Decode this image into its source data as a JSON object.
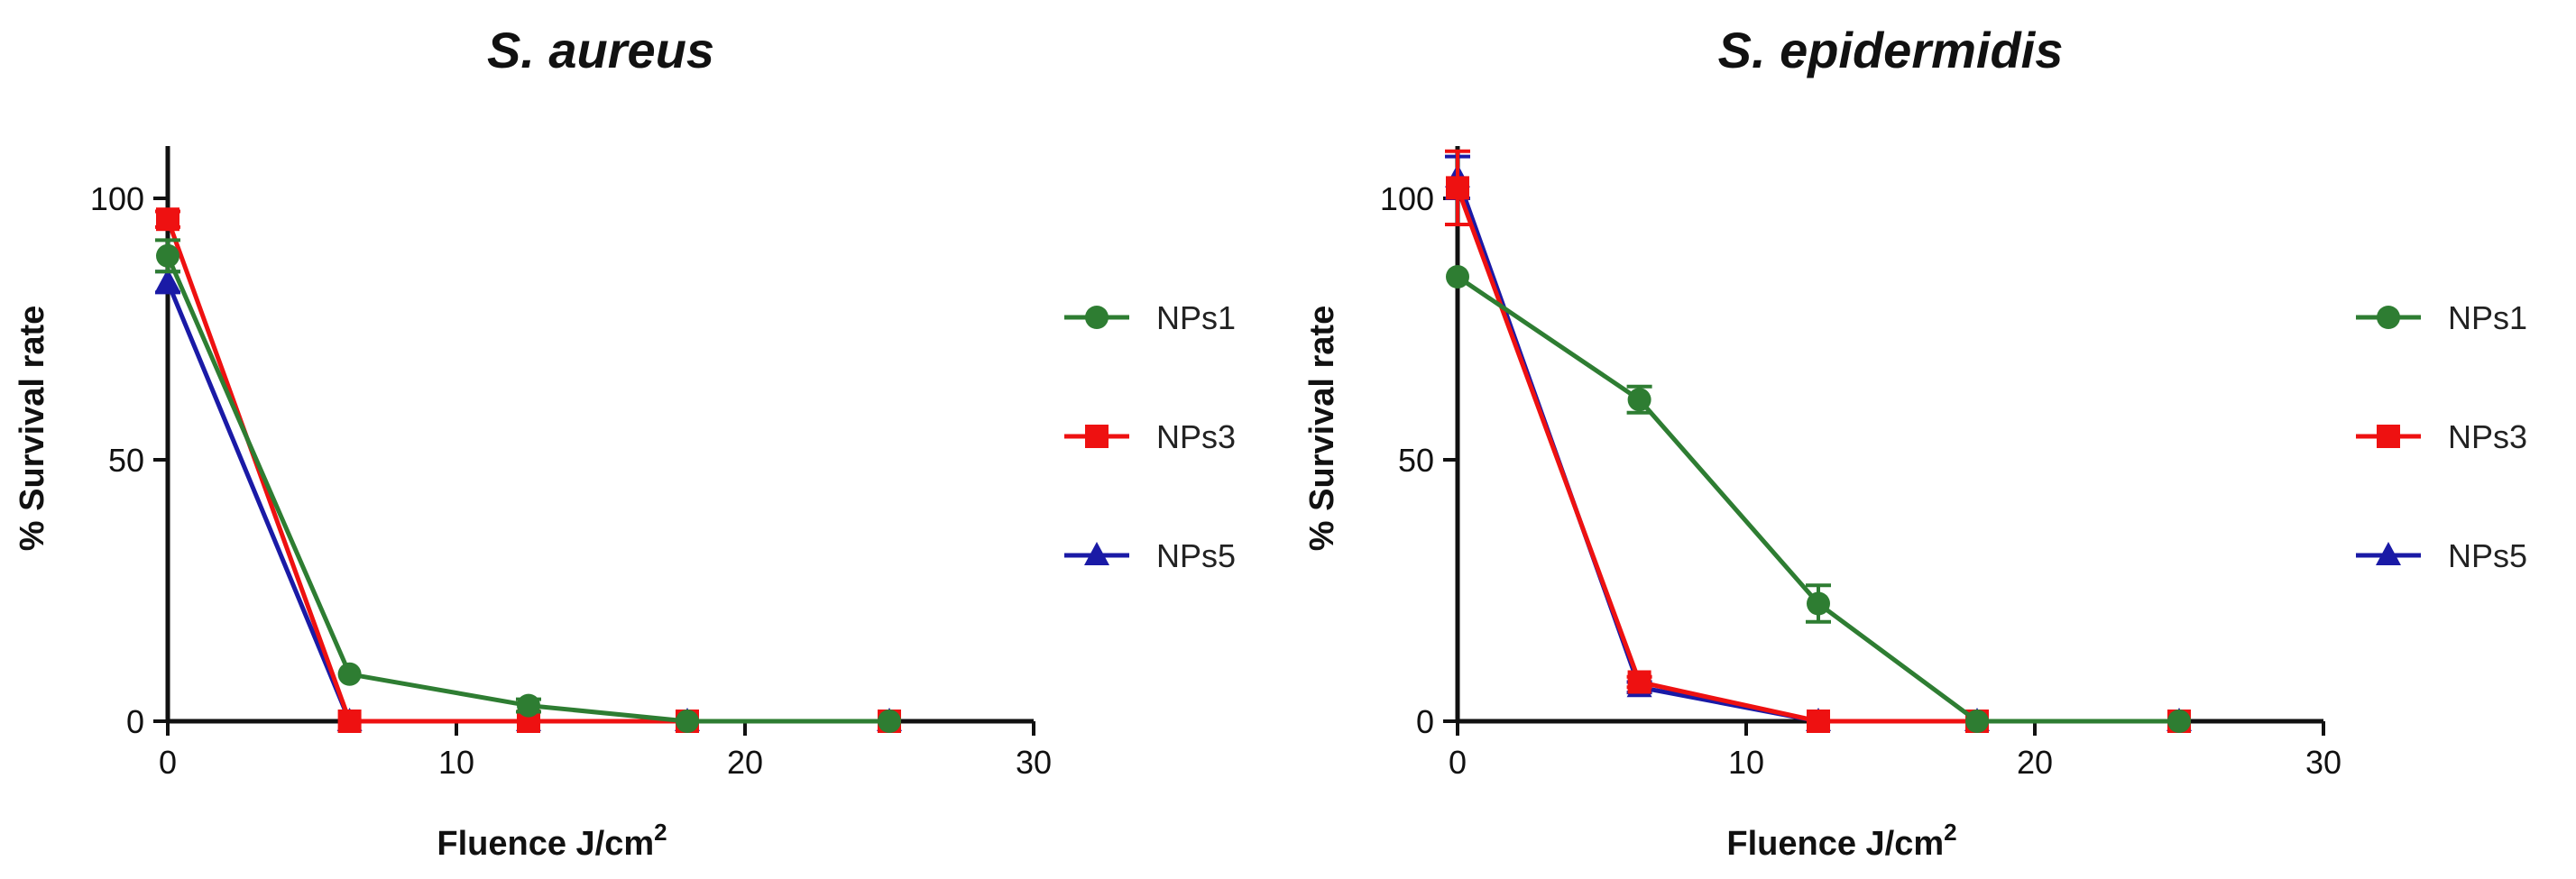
{
  "chart_data": [
    {
      "type": "line",
      "title": "S. aureus",
      "xlabel": "Fluence J/cm",
      "xlabel_sup": "2",
      "ylabel": "% Survival rate",
      "xlim": [
        0,
        30
      ],
      "ylim": [
        0,
        110
      ],
      "xticks": [
        0,
        10,
        20,
        30
      ],
      "yticks": [
        0,
        50,
        100
      ],
      "legend": "right",
      "series": [
        {
          "name": "NPs1",
          "color": "#2e7d32",
          "marker": "circle",
          "x": [
            0,
            6.3,
            12.5,
            18,
            25
          ],
          "y": [
            89,
            9,
            3,
            0,
            0
          ],
          "err": [
            3,
            0,
            1.2,
            0,
            0
          ]
        },
        {
          "name": "NPs3",
          "color": "#ee1111",
          "marker": "square",
          "x": [
            0,
            6.3,
            12.5,
            18,
            25
          ],
          "y": [
            96,
            0,
            0,
            0,
            0
          ],
          "err": [
            1.5,
            0,
            0,
            0,
            0
          ]
        },
        {
          "name": "NPs5",
          "color": "#1a1aa6",
          "marker": "triangle",
          "x": [
            0,
            6.3,
            12.5,
            18,
            25
          ],
          "y": [
            84,
            0,
            0,
            0,
            0
          ],
          "err": [
            2,
            0,
            0,
            0,
            0
          ]
        }
      ]
    },
    {
      "type": "line",
      "title": "S. epidermidis",
      "xlabel": "Fluence J/cm",
      "xlabel_sup": "2",
      "ylabel": "% Survival rate",
      "xlim": [
        0,
        30
      ],
      "ylim": [
        0,
        110
      ],
      "xticks": [
        0,
        10,
        20,
        30
      ],
      "yticks": [
        0,
        50,
        100
      ],
      "legend": "right",
      "series": [
        {
          "name": "NPs1",
          "color": "#2e7d32",
          "marker": "circle",
          "x": [
            0,
            6.3,
            12.5,
            18,
            25
          ],
          "y": [
            85,
            61.5,
            22.5,
            0,
            0
          ],
          "err": [
            0,
            2.5,
            3.5,
            0,
            0
          ]
        },
        {
          "name": "NPs3",
          "color": "#ee1111",
          "marker": "square",
          "x": [
            0,
            6.3,
            12.5,
            18,
            25
          ],
          "y": [
            102,
            7.5,
            0,
            0,
            0
          ],
          "err": [
            7,
            1,
            0,
            0,
            0
          ]
        },
        {
          "name": "NPs5",
          "color": "#1a1aa6",
          "marker": "triangle",
          "x": [
            0,
            6.3,
            12.5,
            18,
            25
          ],
          "y": [
            104,
            6.5,
            0,
            0,
            0
          ],
          "err": [
            4,
            1,
            0,
            0,
            0
          ]
        }
      ]
    }
  ]
}
